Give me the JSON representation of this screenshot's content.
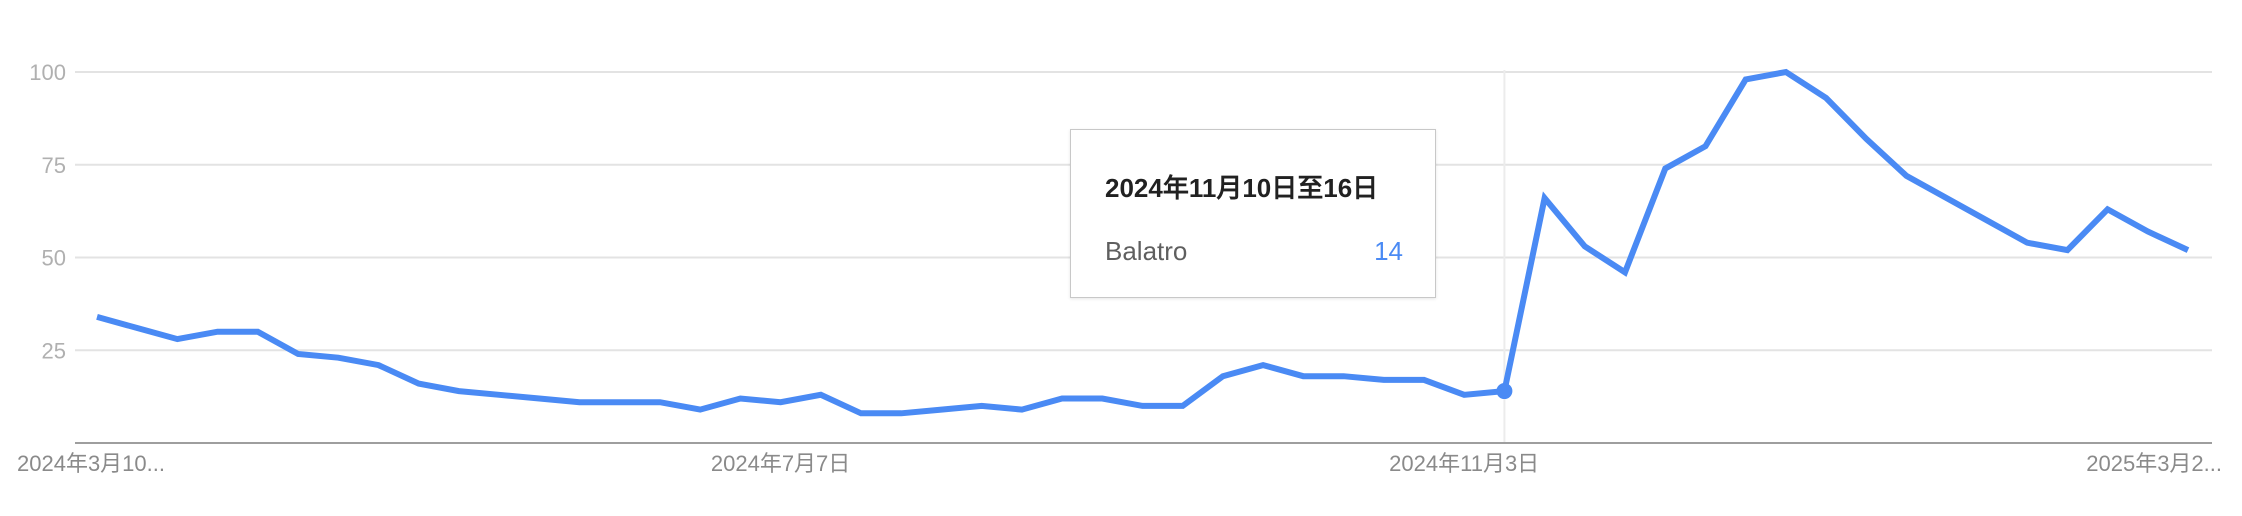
{
  "chart_data": {
    "type": "line",
    "title": "",
    "xlabel": "",
    "ylabel": "",
    "ylim": [
      0,
      100
    ],
    "y_ticks": [
      25,
      50,
      75,
      100
    ],
    "grid": true,
    "x_tick_labels": [
      {
        "index": 0,
        "label": "2024年3月10..."
      },
      {
        "index": 17,
        "label": "2024年7月7日"
      },
      {
        "index": 34,
        "label": "2024年11月3日"
      },
      {
        "index": 52,
        "label": "2025年3月2..."
      }
    ],
    "series": [
      {
        "name": "Balatro",
        "color": "#4a8af4",
        "values": [
          34,
          31,
          28,
          30,
          30,
          24,
          23,
          21,
          16,
          14,
          13,
          12,
          11,
          11,
          11,
          9,
          12,
          11,
          13,
          8,
          8,
          9,
          10,
          9,
          12,
          12,
          10,
          10,
          18,
          21,
          18,
          18,
          17,
          17,
          13,
          14,
          66,
          53,
          46,
          74,
          80,
          98,
          100,
          93,
          82,
          72,
          66,
          60,
          54,
          52,
          63,
          57,
          52
        ]
      }
    ],
    "highlight_index": 35
  },
  "tooltip": {
    "title": "2024年11月10日至16日",
    "series_name": "Balatro",
    "value": "14"
  }
}
